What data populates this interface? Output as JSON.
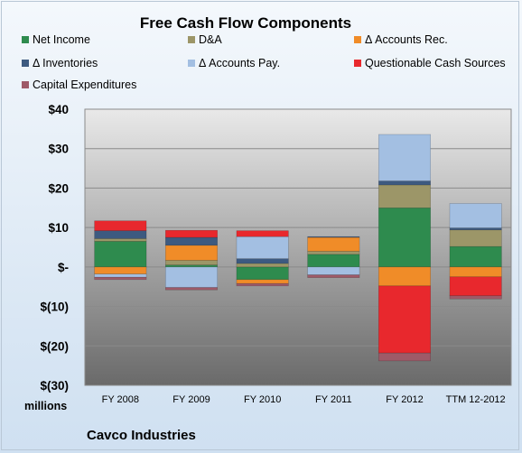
{
  "chart_data": {
    "type": "bar",
    "stacked": true,
    "title": "Free Cash Flow Components",
    "categories": [
      "FY 2008",
      "FY 2009",
      "FY 2010",
      "FY 2011",
      "FY 2012",
      "TTM 12-2012"
    ],
    "ylim": [
      -30,
      40
    ],
    "yticks": [
      40,
      30,
      20,
      10,
      0,
      -10,
      -20,
      -30
    ],
    "ytick_labels": [
      "$40",
      "$30",
      "$20",
      "$10",
      "$-",
      "$(10)",
      "$(20)",
      "$(30)"
    ],
    "y_unit_label": "millions",
    "legend_position": "top",
    "series": [
      {
        "name": "Net Income",
        "color": "#2e8b4e",
        "values": [
          6.5,
          0.5,
          -3.2,
          3.2,
          15.0,
          5.2
        ]
      },
      {
        "name": "D&A",
        "color": "#9c9668",
        "values": [
          0.7,
          1.2,
          0.9,
          0.8,
          5.8,
          4.2
        ]
      },
      {
        "name": "Δ Accounts Rec.",
        "color": "#f08c28",
        "values": [
          -1.8,
          3.8,
          -1.0,
          3.5,
          -4.8,
          -2.5
        ]
      },
      {
        "name": "Δ Inventories",
        "color": "#3d5a80",
        "values": [
          2.0,
          2.0,
          1.2,
          0.2,
          1.0,
          0.5
        ]
      },
      {
        "name": "Δ Accounts Pay.",
        "color": "#a3bfe2",
        "values": [
          -0.8,
          -5.2,
          5.6,
          -2.0,
          11.8,
          6.2
        ]
      },
      {
        "name": "Questionable Cash Sources",
        "color": "#e8282d",
        "values": [
          2.5,
          1.8,
          1.5,
          0.0,
          -17.0,
          -4.8
        ]
      },
      {
        "name": "Capital Expenditures",
        "color": "#9e5a68",
        "values": [
          -0.6,
          -0.6,
          -0.6,
          -0.7,
          -2.0,
          -0.8
        ]
      }
    ]
  },
  "footer": {
    "company": "Cavco Industries"
  }
}
